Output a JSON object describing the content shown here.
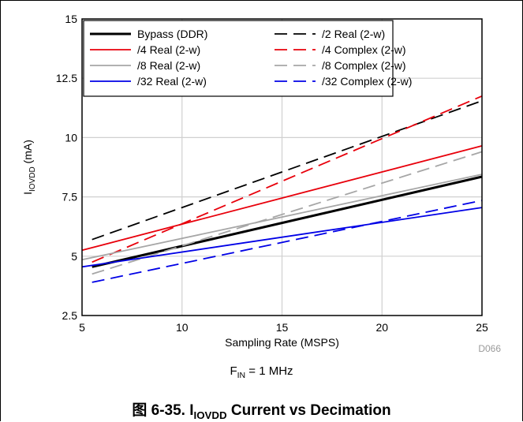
{
  "chart_data": {
    "type": "line",
    "xlabel": "Sampling Rate (MSPS)",
    "ylabel_main": "I",
    "ylabel_sub": "IOVDD",
    "ylabel_unit": " (mA)",
    "xlim": [
      5,
      25
    ],
    "ylim": [
      2.5,
      15
    ],
    "x_ticks": [
      "5",
      "10",
      "15",
      "20",
      "25"
    ],
    "y_ticks": [
      "2.5",
      "5",
      "7.5",
      "10",
      "12.5",
      "15"
    ],
    "grid": true,
    "legend_position": "top-left",
    "series": [
      {
        "name": "Bypass (DDR)",
        "color": "#000000",
        "style": "solid",
        "bold": true,
        "x": [
          5.5,
          25
        ],
        "y": [
          4.55,
          8.35
        ]
      },
      {
        "name": "/2 Real (2-w)",
        "color": "#000000",
        "style": "dashed",
        "bold": false,
        "x": [
          5.5,
          25
        ],
        "y": [
          5.7,
          11.55
        ]
      },
      {
        "name": "/4 Real (2-w)",
        "color": "#e8000b",
        "style": "solid",
        "bold": false,
        "x": [
          5,
          25
        ],
        "y": [
          5.25,
          9.65
        ]
      },
      {
        "name": "/4 Complex (2-w)",
        "color": "#e8000b",
        "style": "dashed",
        "bold": false,
        "x": [
          5.5,
          25
        ],
        "y": [
          4.75,
          11.75
        ]
      },
      {
        "name": "/8 Real (2-w)",
        "color": "#a6a6a6",
        "style": "solid",
        "bold": false,
        "x": [
          5,
          25
        ],
        "y": [
          4.85,
          8.45
        ]
      },
      {
        "name": "/8 Complex (2-w)",
        "color": "#a6a6a6",
        "style": "dashed",
        "bold": false,
        "x": [
          5.5,
          25
        ],
        "y": [
          4.25,
          9.4
        ]
      },
      {
        "name": "/32 Real (2-w)",
        "color": "#0000e6",
        "style": "solid",
        "bold": false,
        "x": [
          5,
          25
        ],
        "y": [
          4.55,
          7.05
        ]
      },
      {
        "name": "/32 Complex (2-w)",
        "color": "#0000e6",
        "style": "dashed",
        "bold": false,
        "x": [
          5.5,
          25
        ],
        "y": [
          3.9,
          7.35
        ]
      }
    ]
  },
  "figure_code": "D066",
  "fin_note": {
    "main": "F",
    "sub": "IN",
    "rest": " = 1 MHz"
  },
  "caption": {
    "prefix": "图 6-35. I",
    "sub": "IOVDD",
    "rest": " Current vs Decimation"
  }
}
